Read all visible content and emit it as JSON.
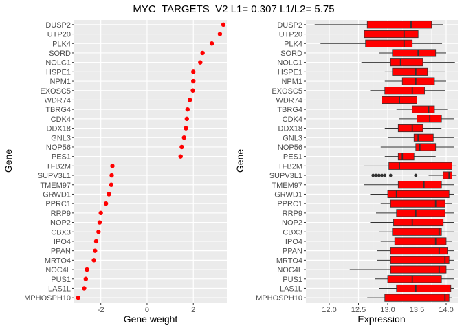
{
  "title": "MYC_TARGETS_V2 L1= 0.307 L1/L2= 5.75",
  "colors": {
    "panel": "#EBEBEB",
    "grid": "#FFFFFF",
    "point": "#FF0000",
    "box_fill": "#FF0000",
    "box_line": "#333333",
    "text": "#4D4D4D",
    "axis_title": "#000000"
  },
  "chart_data": [
    {
      "type": "scatter",
      "title": "",
      "xlabel": "Gene weight",
      "ylabel": "Gene",
      "xlim": [
        -3.15,
        3.45
      ],
      "xticks": [
        -2,
        0,
        2
      ],
      "xtick_labels": [
        "-2",
        "0",
        "2"
      ],
      "grid": true,
      "genes": [
        "DUSP2",
        "UTP20",
        "PLK4",
        "SORD",
        "NOLC1",
        "HSPE1",
        "NPM1",
        "EXOSC5",
        "WDR74",
        "TBRG4",
        "CDK4",
        "DDX18",
        "GNL3",
        "NOP56",
        "PES1",
        "TFB2M",
        "SUPV3L1",
        "TMEM97",
        "GRWD1",
        "PPRC1",
        "RRP9",
        "NOP2",
        "CBX3",
        "IPO4",
        "PPAN",
        "MRTO4",
        "NOC4L",
        "PUS1",
        "LAS1L",
        "MPHOSPH10"
      ],
      "values": [
        3.3,
        3.15,
        2.8,
        2.4,
        2.3,
        2.0,
        2.0,
        1.98,
        1.85,
        1.75,
        1.72,
        1.68,
        1.6,
        1.5,
        1.45,
        -1.5,
        -1.53,
        -1.55,
        -1.65,
        -1.78,
        -2.0,
        -2.05,
        -2.1,
        -2.2,
        -2.25,
        -2.3,
        -2.6,
        -2.65,
        -2.72,
        -2.98
      ]
    },
    {
      "type": "box",
      "title": "",
      "xlabel": "Expression",
      "ylabel": "Gene",
      "xlim": [
        11.6,
        14.2
      ],
      "xticks": [
        12.0,
        12.5,
        13.0,
        13.5,
        14.0
      ],
      "xtick_labels": [
        "12.0",
        "12.5",
        "13.0",
        "13.5",
        "14.0"
      ],
      "grid": true,
      "genes": [
        "DUSP2",
        "UTP20",
        "PLK4",
        "SORD",
        "NOLC1",
        "HSPE1",
        "NPM1",
        "EXOSC5",
        "WDR74",
        "TBRG4",
        "CDK4",
        "DDX18",
        "GNL3",
        "NOP56",
        "PES1",
        "TFB2M",
        "SUPV3L1",
        "TMEM97",
        "GRWD1",
        "PPRC1",
        "RRP9",
        "NOP2",
        "CBX3",
        "IPO4",
        "PPAN",
        "MRTO4",
        "NOC4L",
        "PUS1",
        "LAS1L",
        "MPHOSPH10"
      ],
      "boxes": [
        {
          "min": 11.75,
          "q1": 12.65,
          "median": 13.4,
          "q3": 13.75,
          "max": 13.95,
          "outliers": []
        },
        {
          "min": 12.0,
          "q1": 12.6,
          "median": 13.28,
          "q3": 13.52,
          "max": 13.85,
          "outliers": []
        },
        {
          "min": 11.85,
          "q1": 12.62,
          "median": 13.28,
          "q3": 13.42,
          "max": 13.93,
          "outliers": []
        },
        {
          "min": 12.85,
          "q1": 13.08,
          "median": 13.52,
          "q3": 13.82,
          "max": 14.0,
          "outliers": []
        },
        {
          "min": 12.55,
          "q1": 13.05,
          "median": 13.22,
          "q3": 13.6,
          "max": 14.15,
          "outliers": []
        },
        {
          "min": 12.95,
          "q1": 13.08,
          "median": 13.48,
          "q3": 13.68,
          "max": 13.98,
          "outliers": []
        },
        {
          "min": 12.95,
          "q1": 13.25,
          "median": 13.48,
          "q3": 13.8,
          "max": 14.0,
          "outliers": []
        },
        {
          "min": 12.7,
          "q1": 12.95,
          "median": 13.42,
          "q3": 13.63,
          "max": 13.98,
          "outliers": []
        },
        {
          "min": 12.55,
          "q1": 12.9,
          "median": 13.2,
          "q3": 13.5,
          "max": 14.13,
          "outliers": []
        },
        {
          "min": 13.15,
          "q1": 13.42,
          "median": 13.7,
          "q3": 13.8,
          "max": 14.02,
          "outliers": []
        },
        {
          "min": 13.2,
          "q1": 13.5,
          "median": 13.72,
          "q3": 13.92,
          "max": 14.13,
          "outliers": []
        },
        {
          "min": 12.95,
          "q1": 13.18,
          "median": 13.42,
          "q3": 13.6,
          "max": 13.92,
          "outliers": []
        },
        {
          "min": 13.0,
          "q1": 13.45,
          "median": 13.52,
          "q3": 13.78,
          "max": 14.13,
          "outliers": []
        },
        {
          "min": 12.88,
          "q1": 13.48,
          "median": 13.55,
          "q3": 13.82,
          "max": 14.13,
          "outliers": []
        },
        {
          "min": 12.95,
          "q1": 13.18,
          "median": 13.25,
          "q3": 13.45,
          "max": 13.82,
          "outliers": []
        },
        {
          "min": 12.6,
          "q1": 13.02,
          "median": 13.2,
          "q3": 14.1,
          "max": 14.18,
          "outliers": []
        },
        {
          "min": 13.7,
          "q1": 13.95,
          "median": 14.05,
          "q3": 14.1,
          "max": 14.18,
          "outliers": [
            12.75,
            12.8,
            12.85,
            12.9,
            12.95,
            13.05,
            13.48
          ]
        },
        {
          "min": 12.6,
          "q1": 13.18,
          "median": 13.62,
          "q3": 13.92,
          "max": 14.13,
          "outliers": []
        },
        {
          "min": 12.7,
          "q1": 13.0,
          "median": 13.15,
          "q3": 14.05,
          "max": 14.13,
          "outliers": []
        },
        {
          "min": 12.88,
          "q1": 13.05,
          "median": 13.82,
          "q3": 13.98,
          "max": 14.1,
          "outliers": []
        },
        {
          "min": 12.8,
          "q1": 13.15,
          "median": 13.48,
          "q3": 13.98,
          "max": 14.13,
          "outliers": []
        },
        {
          "min": 12.7,
          "q1": 13.1,
          "median": 13.42,
          "q3": 13.95,
          "max": 14.13,
          "outliers": []
        },
        {
          "min": 12.85,
          "q1": 13.08,
          "median": 13.88,
          "q3": 13.92,
          "max": 14.13,
          "outliers": []
        },
        {
          "min": 12.88,
          "q1": 13.12,
          "median": 13.82,
          "q3": 14.0,
          "max": 14.1,
          "outliers": []
        },
        {
          "min": 12.82,
          "q1": 13.05,
          "median": 13.88,
          "q3": 14.02,
          "max": 14.13,
          "outliers": []
        },
        {
          "min": 12.82,
          "q1": 13.05,
          "median": 13.98,
          "q3": 14.05,
          "max": 14.13,
          "outliers": []
        },
        {
          "min": 12.35,
          "q1": 13.05,
          "median": 13.88,
          "q3": 14.0,
          "max": 14.13,
          "outliers": []
        },
        {
          "min": 12.78,
          "q1": 13.0,
          "median": 13.42,
          "q3": 13.92,
          "max": 14.13,
          "outliers": []
        },
        {
          "min": 12.85,
          "q1": 13.15,
          "median": 13.48,
          "q3": 14.08,
          "max": 14.13,
          "outliers": []
        },
        {
          "min": 12.65,
          "q1": 12.95,
          "median": 13.98,
          "q3": 14.05,
          "max": 14.1,
          "outliers": []
        }
      ]
    }
  ]
}
